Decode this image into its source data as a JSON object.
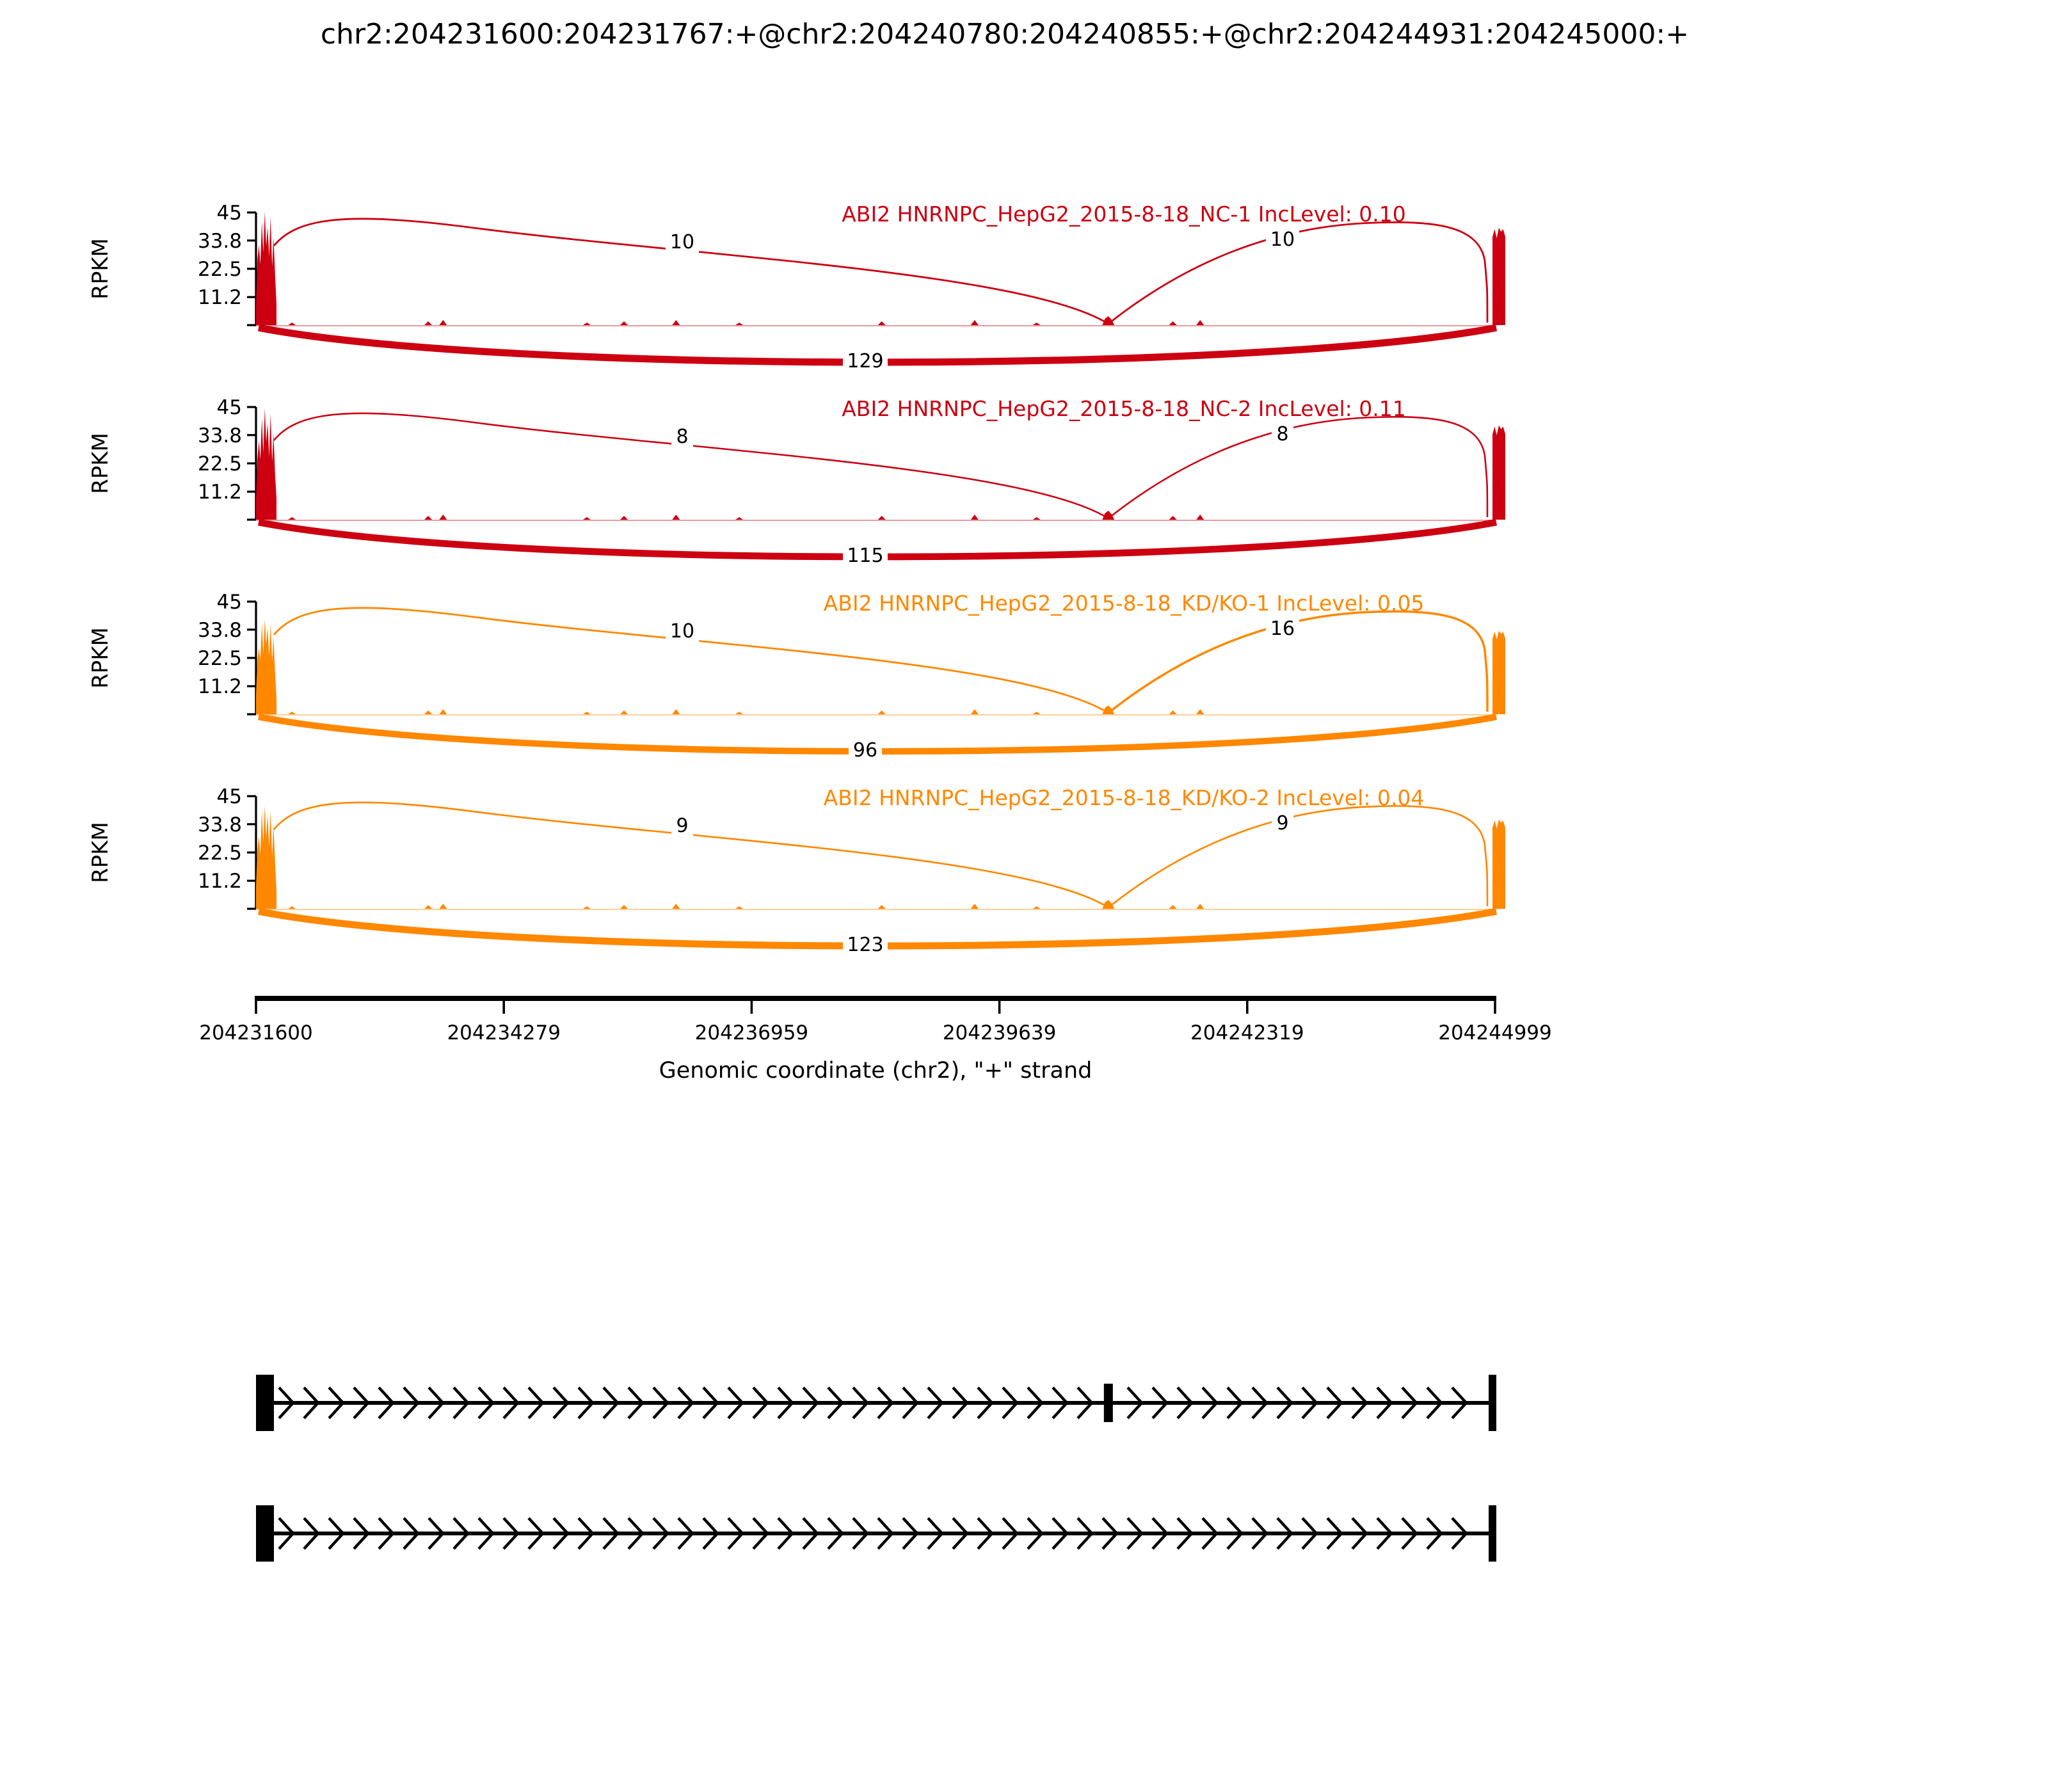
{
  "chart_data": {
    "type": "sashimi",
    "title": "chr2:204231600:204231767:+@chr2:204240780:204240855:+@chr2:204244931:204245000:+",
    "xlabel": "Genomic coordinate (chr2), \"+\" strand",
    "ylabel": "RPKM",
    "gene": "ABI2",
    "strand": "+",
    "chromosome": "chr2",
    "x_range": [
      204231600,
      204244999
    ],
    "x_ticks": [
      "204231600",
      "204234279",
      "204236959",
      "204239639",
      "204242319",
      "204244999"
    ],
    "ylim": [
      0,
      45
    ],
    "y_ticks": [
      "45",
      "33.8",
      "22.5",
      "11.2"
    ],
    "exon_regions": [
      {
        "name": "upstream-exon",
        "start": 204231600,
        "end": 204231767
      },
      {
        "name": "alternative-exon",
        "start": 204240780,
        "end": 204240855
      },
      {
        "name": "downstream-exon",
        "start": 204244931,
        "end": 204245000
      }
    ],
    "tracks": [
      {
        "label": "ABI2 HNRNPC_HepG2_2015-8-18_NC-1 IncLevel: 0.10",
        "inc_level": 0.1,
        "color": "#CC0011",
        "junction_counts": {
          "upstream_inclusion": 10,
          "downstream_inclusion": 10,
          "skipping": 129
        }
      },
      {
        "label": "ABI2 HNRNPC_HepG2_2015-8-18_NC-2 IncLevel: 0.11",
        "inc_level": 0.11,
        "color": "#CC0011",
        "junction_counts": {
          "upstream_inclusion": 8,
          "downstream_inclusion": 8,
          "skipping": 115
        }
      },
      {
        "label": "ABI2 HNRNPC_HepG2_2015-8-18_KD/KO-1 IncLevel: 0.05",
        "inc_level": 0.05,
        "color": "#FF8800",
        "junction_counts": {
          "upstream_inclusion": 10,
          "downstream_inclusion": 16,
          "skipping": 96
        }
      },
      {
        "label": "ABI2 HNRNPC_HepG2_2015-8-18_KD/KO-2 IncLevel: 0.04",
        "inc_level": 0.04,
        "color": "#FF8800",
        "junction_counts": {
          "upstream_inclusion": 9,
          "downstream_inclusion": 9,
          "skipping": 123
        }
      }
    ],
    "isoforms": [
      {
        "name": "inclusion-isoform",
        "exon_count": 3,
        "has_alternative_exon": true
      },
      {
        "name": "skipping-isoform",
        "exon_count": 2,
        "has_alternative_exon": false
      }
    ],
    "colors": {
      "group1": "#CC0011",
      "group2": "#FF8800",
      "axis": "#000000",
      "junction_text": "#000000"
    }
  }
}
